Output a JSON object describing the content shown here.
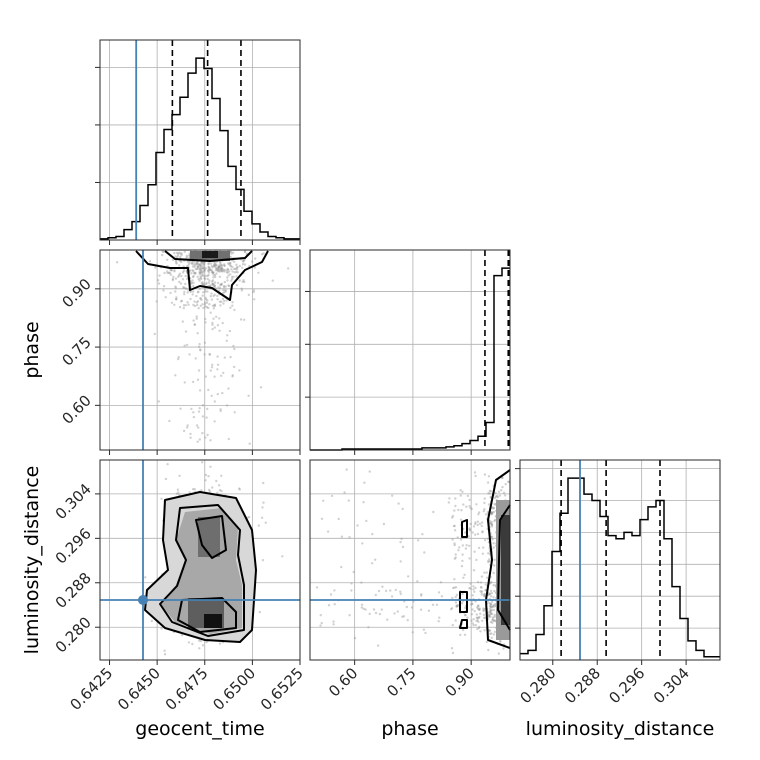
{
  "chart_data": {
    "type": "corner",
    "parameters": [
      "geocent_time",
      "phase",
      "luminosity_distance"
    ],
    "truth_color": "#4682b4",
    "truths": {
      "geocent_time": 0.6439,
      "phase": null,
      "luminosity_distance": 0.2849
    },
    "axes": {
      "geocent_time": {
        "label": "geocent_time",
        "range": [
          0.642,
          0.6525
        ],
        "ticks": [
          0.6425,
          0.645,
          0.6475,
          0.65,
          0.6525
        ],
        "tick_labels": [
          "0.6425",
          "0.6450",
          "0.6475",
          "0.6500",
          "0.6525"
        ]
      },
      "phase": {
        "label": "phase",
        "range": [
          0.485,
          1.0
        ],
        "ticks": [
          0.6,
          0.75,
          0.9
        ],
        "tick_labels": [
          "0.60",
          "0.75",
          "0.90"
        ]
      },
      "luminosity_distance": {
        "label": "luminosity_distance",
        "range": [
          0.2741,
          0.3101
        ],
        "ticks": [
          0.28,
          0.288,
          0.296,
          0.304
        ],
        "tick_labels": [
          "0.280",
          "0.288",
          "0.296",
          "0.304"
        ]
      }
    },
    "histograms": {
      "geocent_time": {
        "bin_edges": [
          0.642,
          0.64242,
          0.64284,
          0.64326,
          0.64368,
          0.6441,
          0.64452,
          0.64494,
          0.64536,
          0.64578,
          0.6462,
          0.64662,
          0.64704,
          0.64746,
          0.64788,
          0.6483,
          0.64872,
          0.64914,
          0.64956,
          0.64998,
          0.6504,
          0.65082,
          0.65124,
          0.65166,
          0.65208,
          0.6525
        ],
        "counts": [
          1,
          2,
          3,
          9,
          16,
          30,
          48,
          76,
          96,
          109,
          124,
          145,
          158,
          149,
          123,
          95,
          64,
          44,
          25,
          14,
          7,
          3,
          2,
          1,
          1
        ],
        "quantiles": [
          0.6458,
          0.64765,
          0.6494
        ]
      },
      "phase": {
        "bin_edges": [
          0.485,
          0.5056,
          0.5262,
          0.5468,
          0.5674,
          0.588,
          0.6086,
          0.6292,
          0.6498,
          0.6704,
          0.691,
          0.7116,
          0.7322,
          0.7528,
          0.7734,
          0.794,
          0.8146,
          0.8352,
          0.8558,
          0.8764,
          0.897,
          0.9176,
          0.9382,
          0.9588,
          0.9794,
          1.0
        ],
        "counts": [
          0,
          0,
          0,
          0,
          1,
          1,
          1,
          1,
          1,
          1,
          1,
          1,
          1,
          1,
          2,
          2,
          2,
          3,
          4,
          6,
          9,
          13,
          26,
          165,
          172
        ],
        "quantiles": [
          0.9355,
          0.9955,
          0.9985
        ]
      },
      "luminosity_distance": {
        "bin_edges": [
          0.2741,
          0.27554,
          0.27698,
          0.27842,
          0.27986,
          0.2813,
          0.28274,
          0.28418,
          0.28562,
          0.28706,
          0.2885,
          0.28994,
          0.29138,
          0.29282,
          0.29426,
          0.2957,
          0.29714,
          0.29858,
          0.30002,
          0.30146,
          0.3029,
          0.30434,
          0.30578,
          0.30722,
          0.30866,
          0.3101
        ],
        "counts": [
          2,
          3,
          8,
          17,
          34,
          46,
          57,
          57,
          52,
          50,
          45,
          39,
          38,
          40,
          39,
          44,
          48,
          50,
          38,
          23,
          13,
          6,
          3,
          1,
          1
        ],
        "quantiles": [
          0.2815,
          0.2896,
          0.2993
        ]
      }
    },
    "scatter_2d": [
      {
        "x": "geocent_time",
        "y": "phase",
        "center": [
          0.6476,
          0.96
        ],
        "spread": [
          0.0012,
          0.1
        ],
        "truth_lines": [
          "x"
        ]
      },
      {
        "x": "geocent_time",
        "y": "luminosity_distance",
        "center": [
          0.6476,
          0.29
        ],
        "spread": [
          0.001,
          0.008
        ],
        "truth_point": [
          0.6439,
          0.2849
        ]
      },
      {
        "x": "phase",
        "y": "luminosity_distance",
        "center": [
          0.96,
          0.29
        ],
        "spread": [
          0.1,
          0.008
        ],
        "truth_lines": [
          "y"
        ]
      }
    ]
  }
}
